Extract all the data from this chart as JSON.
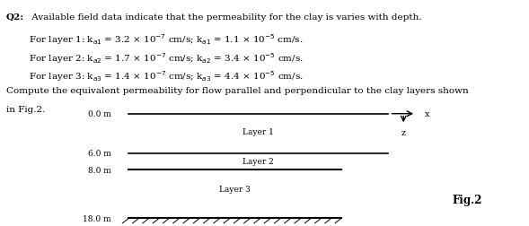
{
  "title_label": "Q2:",
  "title_text": " Available field data indicate that the permeability for the clay is varies with depth.",
  "line1": "        For layer 1: kₑ₁ = 3.2 × 10⁻⁷ cm/s; kₑ₁ = 1.1 × 10⁻⁵ cm/s.",
  "line2": "        For layer 2: kₒ₂ = 1.7 × 10⁻⁷ cm/s; kₒ₂ = 3.4 × 10⁻⁵ cm/s.",
  "line3": "        For layer 3: kₒ₃ = 1.4 × 10⁻⁷ cm/s; kₒ₃ = 4.4 × 10⁻⁵ cm/s.",
  "line4": "Compute the equivalent permeability for flow parallel and perpendicular to the clay layers shown",
  "line5": "in Fig.2.",
  "bg_color": "#ffffff",
  "text_color": "#000000",
  "layer_labels": [
    "Layer 1",
    "Layer 2",
    "Layer 3"
  ],
  "depth_labels": [
    "0.0 m",
    "6.0 m",
    "8.0 m",
    "18.0 m"
  ],
  "fig_label": "Fig.2",
  "line_color": "#000000",
  "hatch_color": "#000000"
}
